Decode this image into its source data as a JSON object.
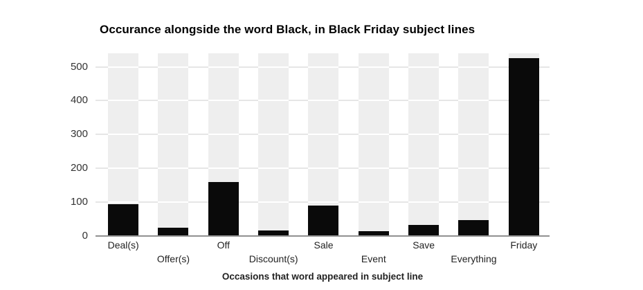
{
  "chart_data": {
    "type": "bar",
    "title": "Occurance alongside the word Black, in Black Friday subject lines",
    "xlabel": "Occasions that word appeared in subject line",
    "ylabel": "",
    "categories": [
      "Deal(s)",
      "Offer(s)",
      "Off",
      "Discount(s)",
      "Sale",
      "Event",
      "Save",
      "Everything",
      "Friday"
    ],
    "values": [
      95,
      25,
      160,
      16,
      90,
      15,
      33,
      48,
      525
    ],
    "background_bar_value": 540,
    "yticks": [
      0,
      100,
      200,
      300,
      400,
      500
    ],
    "ylim": [
      0,
      540
    ],
    "legend": "none",
    "grid": "horizontal",
    "x_tick_label_layout": "staggered-two-rows",
    "colors": {
      "bar": "#0a0a0a",
      "background_bar": "#eeeeee",
      "gridline_gap": "#e6e6e6",
      "gridline_on_bar": "#ffffff",
      "axis_line": "#909090",
      "y_tick_text": "#333333",
      "x_tick_text": "#222222",
      "title_text": "#000000"
    }
  }
}
